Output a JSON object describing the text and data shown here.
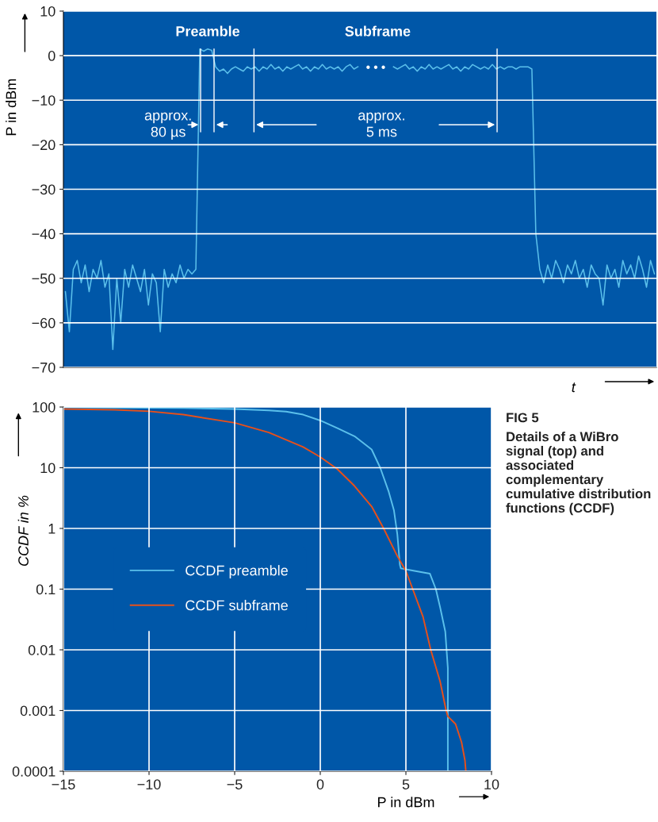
{
  "chart_data": [
    {
      "type": "line",
      "ylabel": "P in dBm",
      "xlabel": "t",
      "categories": [
        null,
        null,
        null,
        null,
        null,
        null,
        null,
        null,
        null,
        null,
        null,
        null,
        null,
        null,
        null,
        null,
        null,
        null,
        null,
        null,
        null,
        null,
        null,
        null,
        null,
        null,
        null,
        null,
        null,
        null,
        null,
        null,
        null,
        null,
        null,
        null,
        null,
        null,
        null,
        null,
        null,
        null,
        null,
        null,
        null,
        null,
        null,
        null,
        null,
        null,
        null,
        null,
        null,
        null,
        null,
        null,
        null,
        null,
        null,
        null,
        null,
        null,
        null,
        null,
        null,
        null,
        null,
        null,
        null,
        null,
        null,
        null,
        null,
        null,
        null,
        null,
        null,
        null,
        null,
        null,
        null,
        null,
        null,
        null,
        null,
        null,
        null,
        null,
        null,
        null,
        null,
        null,
        null,
        null,
        null,
        null,
        null,
        null,
        null,
        null,
        null,
        null,
        null,
        null,
        null,
        null,
        null,
        null,
        null,
        null,
        null,
        null,
        null,
        null,
        null,
        null,
        null,
        null,
        null,
        null,
        null,
        null,
        null,
        null,
        null,
        null,
        null,
        null,
        null,
        null,
        null,
        null,
        null,
        null,
        null,
        null,
        null,
        null,
        null,
        null,
        null,
        null,
        null,
        null,
        null,
        null,
        null,
        null,
        null,
        null
      ],
      "series": [
        {
          "color": "#5bc0eb",
          "values": [
            -53,
            -62,
            -48,
            -46,
            -51,
            -47,
            -53,
            -48,
            -50,
            -46,
            -52,
            -49,
            -66,
            -50,
            -60,
            -48,
            -52,
            -47,
            -50,
            -53,
            -48,
            -56,
            -49,
            -51,
            -62,
            -48,
            -52,
            -49,
            -51,
            -47,
            -50,
            -48,
            -49,
            -48,
            1.5,
            1.0,
            1.5,
            1.2,
            -2.5,
            -3.5,
            -3,
            -4,
            -3,
            -2.5,
            -3,
            -3.5,
            -2.5,
            -3,
            -2.5,
            -3.5,
            -2.5,
            -3,
            -2,
            -3,
            -2.5,
            -3.5,
            -2.5,
            -3,
            -2.5,
            -2,
            -3,
            -2.5,
            -3.5,
            -2.5,
            -3,
            -2,
            -3,
            -2.5,
            -3,
            -2.5,
            -3.5,
            -2.5,
            -2,
            -3,
            -2.5,
            null,
            null,
            null,
            null,
            null,
            null,
            null,
            null,
            -2.5,
            -3,
            -2.5,
            -2,
            -3,
            -2.5,
            -3.5,
            -2.5,
            -3,
            -2,
            -3,
            -2.5,
            -3,
            -2.5,
            -2,
            -3,
            -2.5,
            -3.5,
            -2.5,
            -3,
            -2,
            -2.5,
            -3,
            -2.5,
            -3,
            -2,
            -3,
            -2.5,
            -3,
            -2.5,
            -2.5,
            -3,
            -2.5,
            -2.5,
            -2.5,
            -3,
            -40,
            -48,
            -51,
            -47,
            -50,
            -46,
            -48,
            -51,
            -47,
            -49,
            -46,
            -50,
            -48,
            -52,
            -47,
            -49,
            -50,
            -56,
            -47,
            -50,
            -48,
            -52,
            -46,
            -49,
            -47,
            -50,
            -45,
            -48,
            -52,
            -46,
            -49
          ]
        }
      ],
      "ylim": [
        -70,
        10
      ],
      "yticks": [
        10,
        0,
        {
          "value": -10,
          "label": "−10"
        },
        {
          "value": -20,
          "label": "−20"
        },
        {
          "value": -30,
          "label": "−30"
        },
        {
          "value": -40,
          "label": "−40"
        },
        {
          "value": -50,
          "label": "−50"
        },
        {
          "value": -60,
          "label": "−60"
        },
        {
          "value": -70,
          "label": "−70"
        }
      ],
      "grid": "y",
      "line_style": "solid",
      "annotations": [
        "Preamble",
        "Subframe",
        "approx.\n80 µs",
        "approx.\n5 ms",
        "• • •"
      ]
    },
    {
      "type": "line",
      "ylabel": "CCDF in %",
      "xlabel": "P in dBm",
      "series": [
        {
          "name": "CCDF preamble",
          "color": "#5bc0eb",
          "x": [
            -15,
            -12,
            -10,
            -8,
            -5,
            -3,
            -2,
            -1,
            0,
            1,
            2,
            3,
            3.5,
            4,
            4.3,
            4.5,
            4.65,
            4.7,
            5.5,
            6.4,
            6.75,
            7.0,
            7.3,
            7.45,
            7.45
          ],
          "values": [
            99,
            98,
            97,
            96,
            93,
            88,
            84,
            75,
            60,
            45,
            33,
            20,
            10,
            4,
            2,
            0.8,
            0.25,
            0.22,
            0.2,
            0.18,
            0.1,
            0.05,
            0.02,
            0.005,
            0.0001
          ]
        },
        {
          "name": "CCDF subframe",
          "color": "#e8501a",
          "x": [
            -15,
            -12,
            -10,
            -8,
            -5,
            -3,
            -1,
            0,
            1,
            2,
            3,
            3.7,
            4.5,
            5,
            5.4,
            6,
            6.45,
            7,
            7.35,
            7.45,
            7.9,
            8.25,
            8.45,
            8.5
          ],
          "values": [
            93,
            90,
            85,
            75,
            55,
            38,
            22,
            15,
            9.5,
            5,
            2.3,
            1,
            0.35,
            0.2,
            0.1,
            0.035,
            0.01,
            0.003,
            0.001,
            0.0008,
            0.0006,
            0.0003,
            0.00015,
            0.0001
          ]
        }
      ],
      "log": "y",
      "xlim": [
        -15,
        10
      ],
      "xticks": [
        {
          "value": -15,
          "label": "−15"
        },
        {
          "value": -10,
          "label": "−10"
        },
        {
          "value": -5,
          "label": "−5"
        },
        0,
        5,
        10
      ],
      "ylim": [
        0.0001,
        100
      ],
      "yticks": [
        100,
        10,
        1,
        0.1,
        0.01,
        0.001,
        0.0001
      ],
      "grid": true,
      "legend": "center left",
      "line_style": "solid",
      "annotations": [
        "FIG 5",
        "Details of a WiBro signal (top) and associated complementary cumulative distribution functions (CCDF)"
      ]
    }
  ]
}
